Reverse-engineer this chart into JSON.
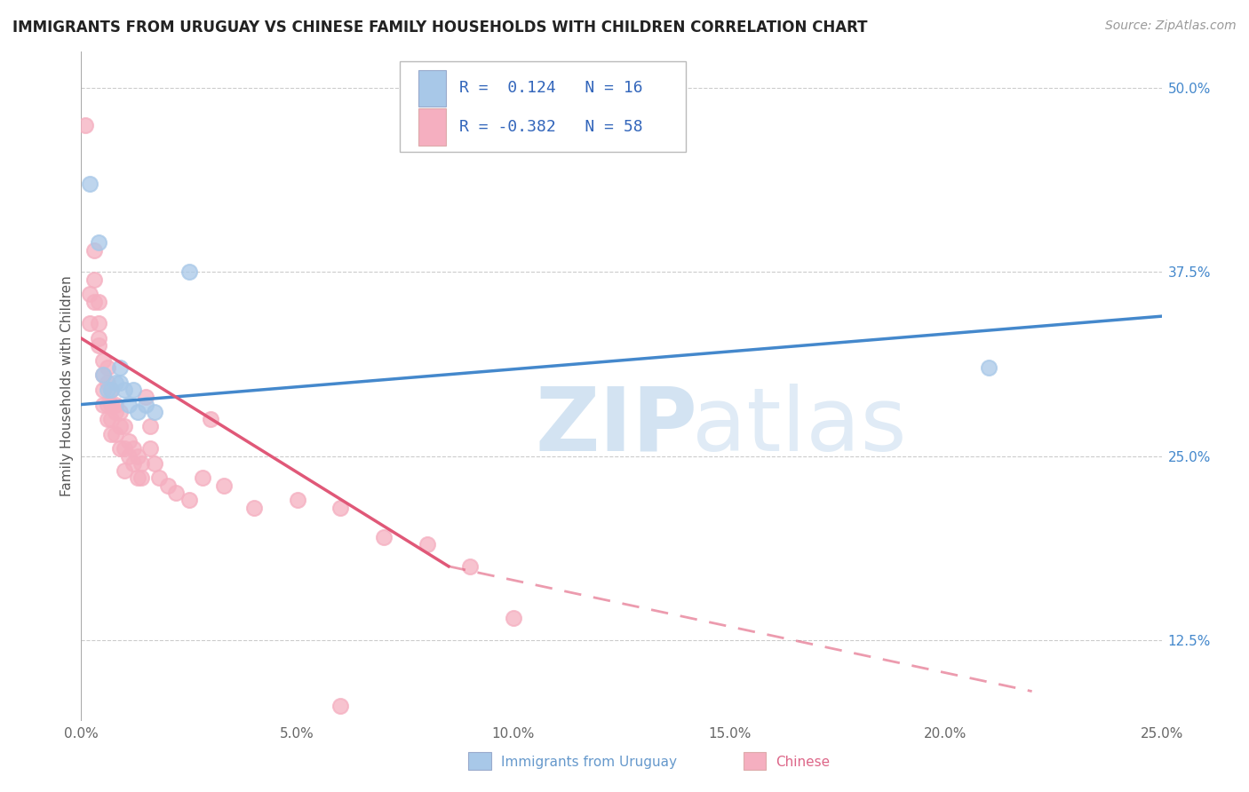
{
  "title": "IMMIGRANTS FROM URUGUAY VS CHINESE FAMILY HOUSEHOLDS WITH CHILDREN CORRELATION CHART",
  "source": "Source: ZipAtlas.com",
  "ylabel": "Family Households with Children",
  "xlim": [
    0.0,
    0.25
  ],
  "ylim": [
    0.07,
    0.525
  ],
  "x_ticks": [
    0.0,
    0.05,
    0.1,
    0.15,
    0.2,
    0.25
  ],
  "x_tick_labels": [
    "0.0%",
    "5.0%",
    "10.0%",
    "15.0%",
    "20.0%",
    "25.0%"
  ],
  "y_ticks": [
    0.125,
    0.25,
    0.375,
    0.5
  ],
  "y_tick_labels": [
    "12.5%",
    "25.0%",
    "37.5%",
    "50.0%"
  ],
  "uruguay_color": "#a8c8e8",
  "chinese_color": "#f5afc0",
  "uruguay_line_color": "#4488cc",
  "chinese_line_color": "#e05878",
  "uruguay_scatter": [
    [
      0.002,
      0.435
    ],
    [
      0.004,
      0.395
    ],
    [
      0.005,
      0.305
    ],
    [
      0.006,
      0.295
    ],
    [
      0.007,
      0.295
    ],
    [
      0.008,
      0.3
    ],
    [
      0.009,
      0.3
    ],
    [
      0.009,
      0.31
    ],
    [
      0.01,
      0.295
    ],
    [
      0.011,
      0.285
    ],
    [
      0.012,
      0.295
    ],
    [
      0.013,
      0.28
    ],
    [
      0.015,
      0.285
    ],
    [
      0.017,
      0.28
    ],
    [
      0.21,
      0.31
    ],
    [
      0.025,
      0.375
    ]
  ],
  "chinese_scatter": [
    [
      0.001,
      0.475
    ],
    [
      0.002,
      0.36
    ],
    [
      0.002,
      0.34
    ],
    [
      0.003,
      0.39
    ],
    [
      0.003,
      0.37
    ],
    [
      0.003,
      0.355
    ],
    [
      0.004,
      0.355
    ],
    [
      0.004,
      0.34
    ],
    [
      0.004,
      0.33
    ],
    [
      0.004,
      0.325
    ],
    [
      0.005,
      0.315
    ],
    [
      0.005,
      0.305
    ],
    [
      0.005,
      0.295
    ],
    [
      0.005,
      0.285
    ],
    [
      0.006,
      0.31
    ],
    [
      0.006,
      0.3
    ],
    [
      0.006,
      0.285
    ],
    [
      0.006,
      0.275
    ],
    [
      0.007,
      0.295
    ],
    [
      0.007,
      0.285
    ],
    [
      0.007,
      0.275
    ],
    [
      0.007,
      0.265
    ],
    [
      0.008,
      0.285
    ],
    [
      0.008,
      0.28
    ],
    [
      0.008,
      0.265
    ],
    [
      0.009,
      0.28
    ],
    [
      0.009,
      0.27
    ],
    [
      0.009,
      0.255
    ],
    [
      0.01,
      0.27
    ],
    [
      0.01,
      0.255
    ],
    [
      0.01,
      0.24
    ],
    [
      0.011,
      0.26
    ],
    [
      0.011,
      0.25
    ],
    [
      0.012,
      0.255
    ],
    [
      0.012,
      0.245
    ],
    [
      0.013,
      0.25
    ],
    [
      0.013,
      0.235
    ],
    [
      0.014,
      0.245
    ],
    [
      0.014,
      0.235
    ],
    [
      0.015,
      0.29
    ],
    [
      0.016,
      0.27
    ],
    [
      0.016,
      0.255
    ],
    [
      0.017,
      0.245
    ],
    [
      0.018,
      0.235
    ],
    [
      0.02,
      0.23
    ],
    [
      0.022,
      0.225
    ],
    [
      0.025,
      0.22
    ],
    [
      0.028,
      0.235
    ],
    [
      0.03,
      0.275
    ],
    [
      0.033,
      0.23
    ],
    [
      0.04,
      0.215
    ],
    [
      0.05,
      0.22
    ],
    [
      0.06,
      0.215
    ],
    [
      0.07,
      0.195
    ],
    [
      0.08,
      0.19
    ],
    [
      0.09,
      0.175
    ],
    [
      0.1,
      0.14
    ],
    [
      0.06,
      0.08
    ]
  ],
  "uruguay_line": [
    [
      0.0,
      0.285
    ],
    [
      0.25,
      0.345
    ]
  ],
  "chinese_line_solid": [
    [
      0.0,
      0.33
    ],
    [
      0.085,
      0.175
    ]
  ],
  "chinese_line_dash": [
    [
      0.085,
      0.175
    ],
    [
      0.22,
      0.09
    ]
  ],
  "title_fontsize": 12,
  "axis_label_fontsize": 11,
  "tick_fontsize": 11,
  "legend_fontsize": 13
}
